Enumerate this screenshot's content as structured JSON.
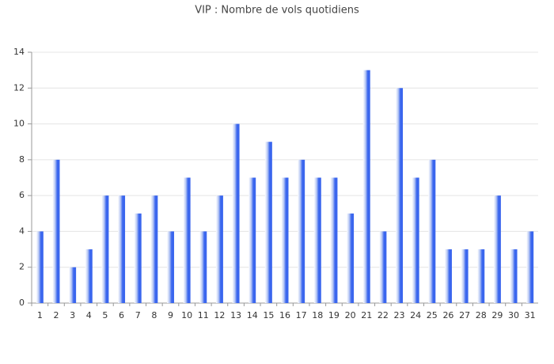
{
  "chart_data": {
    "type": "bar",
    "title": "VIP : Nombre de vols quotidiens",
    "categories": [
      "1",
      "2",
      "3",
      "4",
      "5",
      "6",
      "7",
      "8",
      "9",
      "10",
      "11",
      "12",
      "13",
      "14",
      "15",
      "16",
      "17",
      "18",
      "19",
      "20",
      "21",
      "22",
      "23",
      "24",
      "25",
      "26",
      "27",
      "28",
      "29",
      "30",
      "31"
    ],
    "values": [
      4,
      8,
      2,
      3,
      6,
      6,
      5,
      6,
      4,
      7,
      4,
      6,
      10,
      7,
      9,
      7,
      8,
      7,
      7,
      5,
      13,
      4,
      12,
      7,
      8,
      3,
      3,
      3,
      6,
      3,
      4
    ],
    "color": "#3a66ee",
    "ylim": [
      0,
      14
    ],
    "yticks": [
      0,
      2,
      4,
      6,
      8,
      10,
      12,
      14
    ],
    "grid": true
  }
}
